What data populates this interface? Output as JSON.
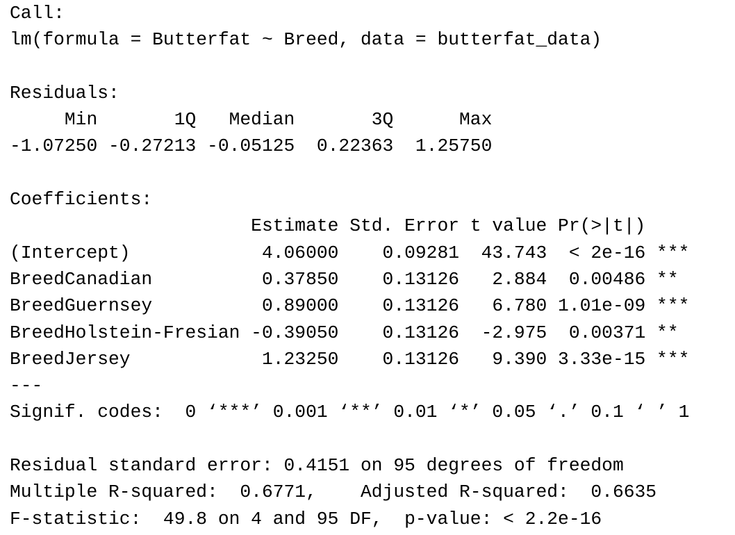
{
  "call": {
    "heading": "Call:",
    "formula": "lm(formula = Butterfat ~ Breed, data = butterfat_data)"
  },
  "residuals": {
    "heading": "Residuals:",
    "header": "     Min       1Q   Median       3Q      Max",
    "values": "-1.07250 -0.27213 -0.05125  0.22363  1.25750"
  },
  "coefficients": {
    "heading": "Coefficients:",
    "header": "                      Estimate Std. Error t value Pr(>|t|)",
    "rows": [
      "(Intercept)            4.06000    0.09281  43.743  < 2e-16 ***",
      "BreedCanadian          0.37850    0.13126   2.884  0.00486 **",
      "BreedGuernsey          0.89000    0.13126   6.780 1.01e-09 ***",
      "BreedHolstein-Fresian -0.39050    0.13126  -2.975  0.00371 **",
      "BreedJersey            1.23250    0.13126   9.390 3.33e-15 ***"
    ],
    "separator": "---",
    "signif_codes": "Signif. codes:  0 ‘***’ 0.001 ‘**’ 0.01 ‘*’ 0.05 ‘.’ 0.1 ‘ ’ 1"
  },
  "summary": {
    "residual_standard_error": "Residual standard error: 0.4151 on 95 degrees of freedom",
    "r_squared": "Multiple R-squared:  0.6771,    Adjusted R-squared:  0.6635",
    "f_statistic": "F-statistic:  49.8 on 4 and 95 DF,  p-value: < 2.2e-16"
  }
}
